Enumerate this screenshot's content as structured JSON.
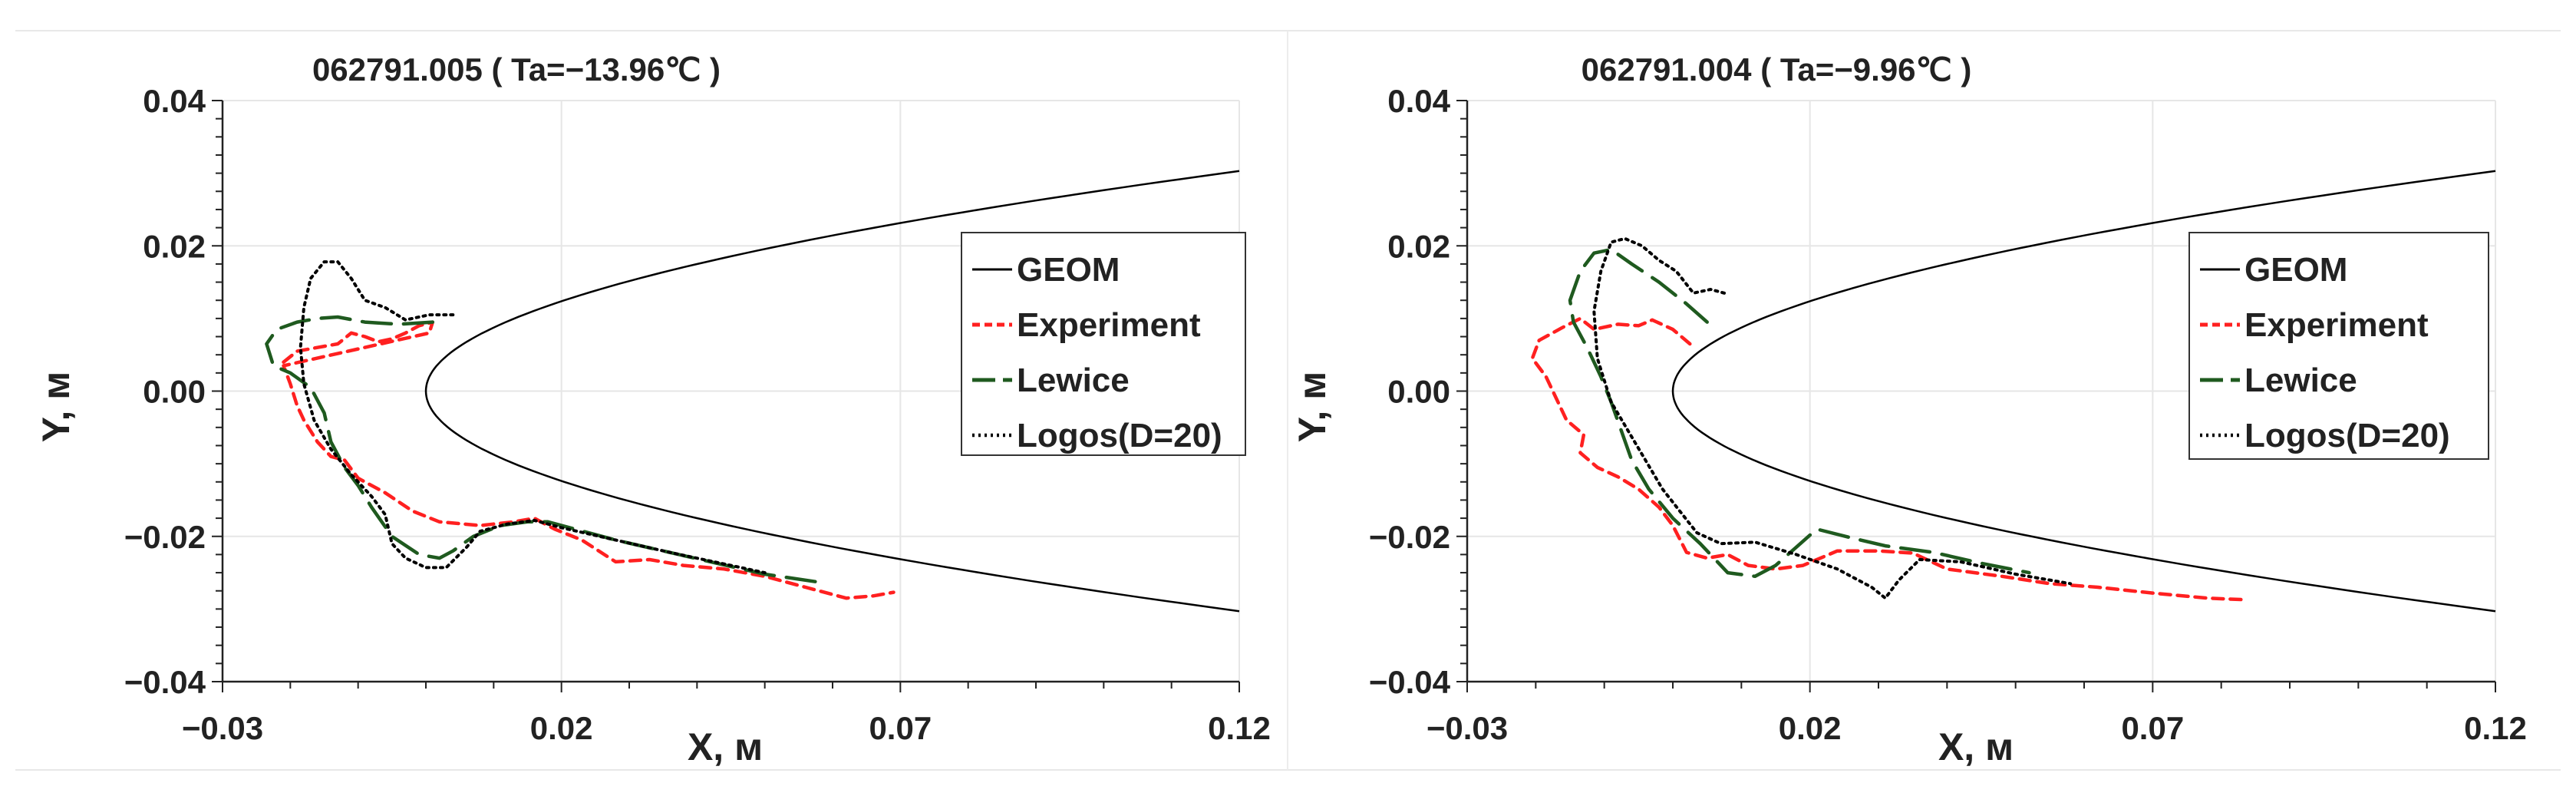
{
  "colors": {
    "geom": "#000000",
    "experiment": "#ff2020",
    "lewice": "#1f5a1f",
    "logos": "#000000",
    "grid": "#e6e6e6",
    "axis": "#222222"
  },
  "chart_data": [
    {
      "type": "line",
      "title": "062791.005 ( Ta=−13.96℃ )",
      "xlabel": "X, м",
      "ylabel": "Y, м",
      "xlim": [
        -0.03,
        0.12
      ],
      "ylim": [
        -0.04,
        0.04
      ],
      "xticks": [
        -0.03,
        0.02,
        0.07,
        0.12
      ],
      "xtick_labels": [
        "−0.03",
        "0.02",
        "0.07",
        "0.12"
      ],
      "yticks": [
        0.04,
        0.02,
        0.0,
        -0.02,
        -0.04
      ],
      "ytick_labels": [
        "0.04",
        "0.02",
        "0.00",
        "−0.02",
        "−0.04"
      ],
      "legend_position": "right",
      "legend": [
        "GEOM",
        "Experiment",
        "Lewice",
        "Logos(D=20)"
      ],
      "series": [
        {
          "name": "Experiment",
          "style": "dashed",
          "points": [
            [
              -0.021,
              0.004
            ],
            [
              -0.019,
              0.0055
            ],
            [
              -0.016,
              0.006
            ],
            [
              -0.013,
              0.0065
            ],
            [
              -0.011,
              0.008
            ],
            [
              -0.009,
              0.0075
            ],
            [
              -0.007,
              0.0068
            ],
            [
              -0.005,
              0.0072
            ],
            [
              -0.003,
              0.008
            ],
            [
              -0.001,
              0.009
            ],
            [
              0.001,
              0.0095
            ],
            [
              0.0005,
              0.008
            ],
            [
              -0.021,
              0.0035
            ],
            [
              -0.02,
              0.001
            ],
            [
              -0.019,
              -0.002
            ],
            [
              -0.018,
              -0.004
            ],
            [
              -0.016,
              -0.007
            ],
            [
              -0.014,
              -0.009
            ],
            [
              -0.012,
              -0.0095
            ],
            [
              -0.01,
              -0.012
            ],
            [
              -0.006,
              -0.014
            ],
            [
              -0.002,
              -0.0165
            ],
            [
              0.002,
              -0.018
            ],
            [
              0.008,
              -0.0185
            ],
            [
              0.013,
              -0.018
            ],
            [
              0.016,
              -0.0175
            ],
            [
              0.019,
              -0.019
            ],
            [
              0.023,
              -0.0205
            ],
            [
              0.028,
              -0.0235
            ],
            [
              0.033,
              -0.0232
            ],
            [
              0.038,
              -0.024
            ],
            [
              0.044,
              -0.0245
            ],
            [
              0.05,
              -0.0255
            ],
            [
              0.056,
              -0.027
            ],
            [
              0.062,
              -0.0285
            ],
            [
              0.066,
              -0.0282
            ],
            [
              0.069,
              -0.0277
            ]
          ]
        },
        {
          "name": "Lewice",
          "style": "longdash",
          "points": [
            [
              0.001,
              0.0095
            ],
            [
              -0.004,
              0.0092
            ],
            [
              -0.009,
              0.0095
            ],
            [
              -0.013,
              0.0102
            ],
            [
              -0.016,
              0.01
            ],
            [
              -0.019,
              0.0095
            ],
            [
              -0.022,
              0.0085
            ],
            [
              -0.0235,
              0.0065
            ],
            [
              -0.0225,
              0.0035
            ],
            [
              -0.02,
              0.0025
            ],
            [
              -0.017,
              0.0005
            ],
            [
              -0.015,
              -0.003
            ],
            [
              -0.014,
              -0.007
            ],
            [
              -0.012,
              -0.0105
            ],
            [
              -0.01,
              -0.013
            ],
            [
              -0.008,
              -0.016
            ],
            [
              -0.005,
              -0.02
            ],
            [
              -0.001,
              -0.0225
            ],
            [
              0.002,
              -0.023
            ],
            [
              0.004,
              -0.022
            ],
            [
              0.007,
              -0.02
            ],
            [
              0.011,
              -0.0185
            ],
            [
              0.015,
              -0.018
            ],
            [
              0.018,
              -0.018
            ],
            [
              0.022,
              -0.019
            ],
            [
              0.028,
              -0.0205
            ],
            [
              0.035,
              -0.022
            ],
            [
              0.042,
              -0.0235
            ],
            [
              0.05,
              -0.0252
            ],
            [
              0.058,
              -0.0263
            ]
          ]
        },
        {
          "name": "Logos(D=20)",
          "style": "dotted",
          "points": [
            [
              0.004,
              0.0105
            ],
            [
              0.0005,
              0.0105
            ],
            [
              -0.003,
              0.0098
            ],
            [
              -0.006,
              0.0115
            ],
            [
              -0.009,
              0.0125
            ],
            [
              -0.011,
              0.0155
            ],
            [
              -0.013,
              0.0178
            ],
            [
              -0.015,
              0.0178
            ],
            [
              -0.017,
              0.0155
            ],
            [
              -0.018,
              0.0115
            ],
            [
              -0.0185,
              0.006
            ],
            [
              -0.018,
              0.001
            ],
            [
              -0.0165,
              -0.004
            ],
            [
              -0.014,
              -0.008
            ],
            [
              -0.011,
              -0.0115
            ],
            [
              -0.008,
              -0.0145
            ],
            [
              -0.006,
              -0.017
            ],
            [
              -0.005,
              -0.021
            ],
            [
              -0.003,
              -0.023
            ],
            [
              0.0,
              -0.0243
            ],
            [
              0.003,
              -0.0243
            ],
            [
              0.006,
              -0.0215
            ],
            [
              0.008,
              -0.0193
            ],
            [
              0.012,
              -0.0183
            ],
            [
              0.016,
              -0.0178
            ],
            [
              0.02,
              -0.0188
            ],
            [
              0.028,
              -0.0205
            ],
            [
              0.036,
              -0.0222
            ],
            [
              0.044,
              -0.0238
            ],
            [
              0.05,
              -0.025
            ]
          ]
        },
        {
          "name": "GEOM",
          "style": "solid",
          "parabola_a": 0.00765
        }
      ]
    },
    {
      "type": "line",
      "title": "062791.004 ( Ta=−9.96℃ )",
      "xlabel": "X, м",
      "ylabel": "Y, м",
      "xlim": [
        -0.03,
        0.12
      ],
      "ylim": [
        -0.04,
        0.04
      ],
      "xticks": [
        -0.03,
        0.02,
        0.07,
        0.12
      ],
      "xtick_labels": [
        "−0.03",
        "0.02",
        "0.07",
        "0.12"
      ],
      "yticks": [
        0.04,
        0.02,
        0.0,
        -0.02,
        -0.04
      ],
      "ytick_labels": [
        "0.04",
        "0.02",
        "0.00",
        "−0.02",
        "−0.04"
      ],
      "legend_position": "right",
      "legend": [
        "GEOM",
        "Experiment",
        "Lewice",
        "Logos(D=20)"
      ],
      "series": [
        {
          "name": "Experiment",
          "style": "dashed",
          "points": [
            [
              0.0025,
              0.0065
            ],
            [
              0.0,
              0.0085
            ],
            [
              -0.003,
              0.0098
            ],
            [
              -0.005,
              0.009
            ],
            [
              -0.008,
              0.0092
            ],
            [
              -0.0115,
              0.0085
            ],
            [
              -0.0135,
              0.01
            ],
            [
              -0.016,
              0.0088
            ],
            [
              -0.0195,
              0.007
            ],
            [
              -0.0205,
              0.0045
            ],
            [
              -0.0185,
              0.002
            ],
            [
              -0.017,
              -0.001
            ],
            [
              -0.0155,
              -0.004
            ],
            [
              -0.013,
              -0.006
            ],
            [
              -0.0135,
              -0.0085
            ],
            [
              -0.011,
              -0.0105
            ],
            [
              -0.008,
              -0.0118
            ],
            [
              -0.005,
              -0.0135
            ],
            [
              -0.002,
              -0.016
            ],
            [
              0.0,
              -0.0185
            ],
            [
              0.002,
              -0.0222
            ],
            [
              0.005,
              -0.023
            ],
            [
              0.008,
              -0.0225
            ],
            [
              0.011,
              -0.024
            ],
            [
              0.015,
              -0.0245
            ],
            [
              0.019,
              -0.024
            ],
            [
              0.024,
              -0.022
            ],
            [
              0.03,
              -0.022
            ],
            [
              0.035,
              -0.0223
            ],
            [
              0.04,
              -0.0245
            ],
            [
              0.048,
              -0.0255
            ],
            [
              0.055,
              -0.0265
            ],
            [
              0.062,
              -0.027
            ],
            [
              0.07,
              -0.0278
            ],
            [
              0.078,
              -0.0285
            ],
            [
              0.083,
              -0.0287
            ]
          ]
        },
        {
          "name": "Lewice",
          "style": "longdash",
          "points": [
            [
              0.005,
              0.0095
            ],
            [
              0.002,
              0.012
            ],
            [
              -0.002,
              0.015
            ],
            [
              -0.006,
              0.0175
            ],
            [
              -0.009,
              0.0195
            ],
            [
              -0.0115,
              0.019
            ],
            [
              -0.0135,
              0.0165
            ],
            [
              -0.015,
              0.0125
            ],
            [
              -0.0145,
              0.0095
            ],
            [
              -0.0125,
              0.006
            ],
            [
              -0.0105,
              0.002
            ],
            [
              -0.009,
              -0.0015
            ],
            [
              -0.0075,
              -0.0055
            ],
            [
              -0.006,
              -0.0095
            ],
            [
              -0.0035,
              -0.0135
            ],
            [
              0.0,
              -0.0175
            ],
            [
              0.004,
              -0.021
            ],
            [
              0.008,
              -0.025
            ],
            [
              0.012,
              -0.0255
            ],
            [
              0.015,
              -0.024
            ],
            [
              0.018,
              -0.0215
            ],
            [
              0.021,
              -0.019
            ],
            [
              0.026,
              -0.0202
            ],
            [
              0.031,
              -0.0213
            ],
            [
              0.038,
              -0.0222
            ],
            [
              0.045,
              -0.0237
            ],
            [
              0.052,
              -0.025
            ]
          ]
        },
        {
          "name": "Logos(D=20)",
          "style": "dotted",
          "points": [
            [
              0.0075,
              0.0135
            ],
            [
              0.0055,
              0.014
            ],
            [
              0.003,
              0.0135
            ],
            [
              0.0005,
              0.0165
            ],
            [
              -0.002,
              0.018
            ],
            [
              -0.0045,
              0.02
            ],
            [
              -0.007,
              0.021
            ],
            [
              -0.009,
              0.0205
            ],
            [
              -0.0105,
              0.0165
            ],
            [
              -0.0115,
              0.011
            ],
            [
              -0.011,
              0.0045
            ],
            [
              -0.009,
              -0.0015
            ],
            [
              -0.0065,
              -0.0055
            ],
            [
              -0.004,
              -0.0095
            ],
            [
              -0.0015,
              -0.0135
            ],
            [
              0.001,
              -0.0165
            ],
            [
              0.0035,
              -0.0195
            ],
            [
              0.007,
              -0.021
            ],
            [
              0.012,
              -0.0208
            ],
            [
              0.018,
              -0.0225
            ],
            [
              0.024,
              -0.0245
            ],
            [
              0.029,
              -0.027
            ],
            [
              0.031,
              -0.0285
            ],
            [
              0.033,
              -0.026
            ],
            [
              0.036,
              -0.0232
            ],
            [
              0.042,
              -0.0235
            ],
            [
              0.05,
              -0.0252
            ],
            [
              0.058,
              -0.0265
            ]
          ]
        },
        {
          "name": "GEOM",
          "style": "solid",
          "parabola_a": 0.00765
        }
      ]
    }
  ]
}
